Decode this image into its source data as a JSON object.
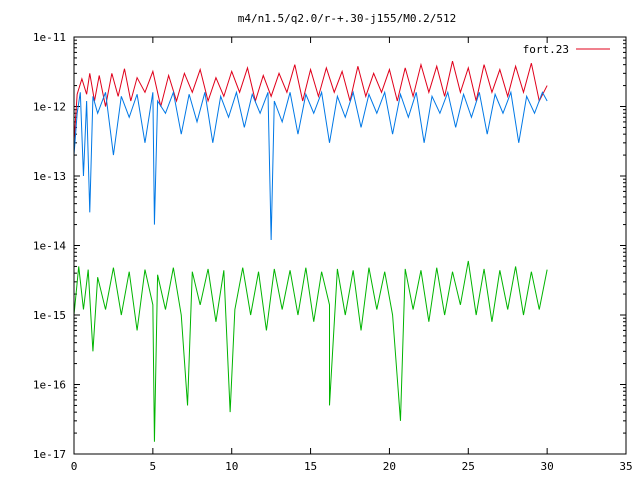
{
  "chart_data": {
    "type": "line",
    "title": "m4/n1.5/q2.0/r-+.30-j155/M0.2/512",
    "xlim": [
      0,
      35
    ],
    "ylim": [
      1e-17,
      1e-11
    ],
    "yscale": "log",
    "grid": false,
    "legend_position": "top-right",
    "x_ticks": [
      "0",
      "5",
      "10",
      "15",
      "20",
      "25",
      "30",
      "35"
    ],
    "y_ticks": [
      "1e-17",
      "1e-16",
      "1e-15",
      "1e-14",
      "1e-13",
      "1e-12",
      "1e-11"
    ],
    "series": [
      {
        "name": "fort.23",
        "color": "#e0001b",
        "points": [
          [
            0,
            3e-13
          ],
          [
            0.2,
            1.5e-12
          ],
          [
            0.5,
            2.5e-12
          ],
          [
            0.8,
            1.5e-12
          ],
          [
            1.0,
            3e-12
          ],
          [
            1.3,
            1.2e-12
          ],
          [
            1.6,
            2.8e-12
          ],
          [
            2.0,
            1e-12
          ],
          [
            2.4,
            3e-12
          ],
          [
            2.8,
            1.4e-12
          ],
          [
            3.2,
            3.5e-12
          ],
          [
            3.6,
            1.2e-12
          ],
          [
            4.0,
            2.6e-12
          ],
          [
            4.5,
            1.6e-12
          ],
          [
            5.0,
            3.2e-12
          ],
          [
            5.5,
            1e-12
          ],
          [
            6.0,
            2.8e-12
          ],
          [
            6.5,
            1.2e-12
          ],
          [
            7.0,
            3e-12
          ],
          [
            7.5,
            1.6e-12
          ],
          [
            8.0,
            3.4e-12
          ],
          [
            8.5,
            1.2e-12
          ],
          [
            9.0,
            2.6e-12
          ],
          [
            9.5,
            1.4e-12
          ],
          [
            10.0,
            3.2e-12
          ],
          [
            10.5,
            1.6e-12
          ],
          [
            11.0,
            3.6e-12
          ],
          [
            11.5,
            1.2e-12
          ],
          [
            12.0,
            2.8e-12
          ],
          [
            12.5,
            1.4e-12
          ],
          [
            13.0,
            3e-12
          ],
          [
            13.5,
            1.6e-12
          ],
          [
            14.0,
            4e-12
          ],
          [
            14.5,
            1.2e-12
          ],
          [
            15.0,
            3.4e-12
          ],
          [
            15.5,
            1.4e-12
          ],
          [
            16.0,
            3.6e-12
          ],
          [
            16.5,
            1.6e-12
          ],
          [
            17.0,
            3.2e-12
          ],
          [
            17.5,
            1.2e-12
          ],
          [
            18.0,
            3.8e-12
          ],
          [
            18.5,
            1.4e-12
          ],
          [
            19.0,
            3e-12
          ],
          [
            19.5,
            1.6e-12
          ],
          [
            20.0,
            3.4e-12
          ],
          [
            20.5,
            1.2e-12
          ],
          [
            21.0,
            3.6e-12
          ],
          [
            21.5,
            1.4e-12
          ],
          [
            22.0,
            4e-12
          ],
          [
            22.5,
            1.6e-12
          ],
          [
            23.0,
            3.8e-12
          ],
          [
            23.5,
            1.4e-12
          ],
          [
            24.0,
            4.5e-12
          ],
          [
            24.5,
            1.6e-12
          ],
          [
            25.0,
            3.6e-12
          ],
          [
            25.5,
            1.2e-12
          ],
          [
            26.0,
            4e-12
          ],
          [
            26.5,
            1.6e-12
          ],
          [
            27.0,
            3.4e-12
          ],
          [
            27.5,
            1.4e-12
          ],
          [
            28.0,
            3.8e-12
          ],
          [
            28.5,
            1.6e-12
          ],
          [
            29.0,
            4.2e-12
          ],
          [
            29.5,
            1.2e-12
          ],
          [
            30.0,
            2e-12
          ]
        ]
      },
      {
        "color": "#0078e6",
        "points": [
          [
            0,
            2e-13
          ],
          [
            0.2,
            8e-13
          ],
          [
            0.4,
            1.6e-12
          ],
          [
            0.6,
            1e-13
          ],
          [
            0.8,
            1.2e-12
          ],
          [
            1.0,
            3e-14
          ],
          [
            1.2,
            1.4e-12
          ],
          [
            1.5,
            8e-13
          ],
          [
            2.0,
            1.6e-12
          ],
          [
            2.5,
            2e-13
          ],
          [
            3.0,
            1.4e-12
          ],
          [
            3.5,
            7e-13
          ],
          [
            4.0,
            1.5e-12
          ],
          [
            4.5,
            3e-13
          ],
          [
            5.0,
            1.6e-12
          ],
          [
            5.1,
            2e-14
          ],
          [
            5.3,
            1.2e-12
          ],
          [
            5.8,
            8e-13
          ],
          [
            6.3,
            1.6e-12
          ],
          [
            6.8,
            4e-13
          ],
          [
            7.3,
            1.5e-12
          ],
          [
            7.8,
            6e-13
          ],
          [
            8.3,
            1.6e-12
          ],
          [
            8.8,
            3e-13
          ],
          [
            9.3,
            1.4e-12
          ],
          [
            9.8,
            7e-13
          ],
          [
            10.3,
            1.6e-12
          ],
          [
            10.8,
            5e-13
          ],
          [
            11.3,
            1.5e-12
          ],
          [
            11.8,
            8e-13
          ],
          [
            12.3,
            1.6e-12
          ],
          [
            12.5,
            1.2e-14
          ],
          [
            12.7,
            1.2e-12
          ],
          [
            13.2,
            6e-13
          ],
          [
            13.7,
            1.6e-12
          ],
          [
            14.2,
            4e-13
          ],
          [
            14.7,
            1.5e-12
          ],
          [
            15.2,
            8e-13
          ],
          [
            15.7,
            1.6e-12
          ],
          [
            16.2,
            3e-13
          ],
          [
            16.7,
            1.4e-12
          ],
          [
            17.2,
            7e-13
          ],
          [
            17.7,
            1.6e-12
          ],
          [
            18.2,
            5e-13
          ],
          [
            18.7,
            1.5e-12
          ],
          [
            19.2,
            8e-13
          ],
          [
            19.7,
            1.6e-12
          ],
          [
            20.2,
            4e-13
          ],
          [
            20.7,
            1.5e-12
          ],
          [
            21.2,
            7e-13
          ],
          [
            21.7,
            1.6e-12
          ],
          [
            22.2,
            3e-13
          ],
          [
            22.7,
            1.4e-12
          ],
          [
            23.2,
            8e-13
          ],
          [
            23.7,
            1.6e-12
          ],
          [
            24.2,
            5e-13
          ],
          [
            24.7,
            1.5e-12
          ],
          [
            25.2,
            7e-13
          ],
          [
            25.7,
            1.6e-12
          ],
          [
            26.2,
            4e-13
          ],
          [
            26.7,
            1.5e-12
          ],
          [
            27.2,
            8e-13
          ],
          [
            27.7,
            1.6e-12
          ],
          [
            28.2,
            3e-13
          ],
          [
            28.7,
            1.4e-12
          ],
          [
            29.2,
            8e-13
          ],
          [
            29.7,
            1.6e-12
          ],
          [
            30.0,
            1.2e-12
          ]
        ]
      },
      {
        "color": "#00b400",
        "points": [
          [
            0,
            1e-15
          ],
          [
            0.3,
            5e-15
          ],
          [
            0.6,
            1.2e-15
          ],
          [
            0.9,
            4.5e-15
          ],
          [
            1.2,
            3e-16
          ],
          [
            1.5,
            3.5e-15
          ],
          [
            2.0,
            1.2e-15
          ],
          [
            2.5,
            4.8e-15
          ],
          [
            3.0,
            1e-15
          ],
          [
            3.5,
            4.2e-15
          ],
          [
            4.0,
            6e-16
          ],
          [
            4.5,
            4.5e-15
          ],
          [
            5.0,
            1.4e-15
          ],
          [
            5.1,
            1.5e-17
          ],
          [
            5.3,
            3.8e-15
          ],
          [
            5.8,
            1.2e-15
          ],
          [
            6.3,
            4.8e-15
          ],
          [
            6.8,
            1e-15
          ],
          [
            7.2,
            5e-17
          ],
          [
            7.5,
            4.2e-15
          ],
          [
            8.0,
            1.4e-15
          ],
          [
            8.5,
            4.6e-15
          ],
          [
            9.0,
            8e-16
          ],
          [
            9.5,
            4.4e-15
          ],
          [
            9.9,
            4e-17
          ],
          [
            10.2,
            1.2e-15
          ],
          [
            10.7,
            4.8e-15
          ],
          [
            11.2,
            1e-15
          ],
          [
            11.7,
            4.2e-15
          ],
          [
            12.2,
            6e-16
          ],
          [
            12.7,
            4.6e-15
          ],
          [
            13.2,
            1.2e-15
          ],
          [
            13.7,
            4.4e-15
          ],
          [
            14.2,
            1e-15
          ],
          [
            14.7,
            4.8e-15
          ],
          [
            15.2,
            8e-16
          ],
          [
            15.7,
            4.2e-15
          ],
          [
            16.2,
            1.4e-15
          ],
          [
            16.2,
            5e-17
          ],
          [
            16.7,
            4.6e-15
          ],
          [
            17.2,
            1e-15
          ],
          [
            17.7,
            4.4e-15
          ],
          [
            18.2,
            6e-16
          ],
          [
            18.7,
            4.8e-15
          ],
          [
            19.2,
            1.2e-15
          ],
          [
            19.7,
            4.2e-15
          ],
          [
            20.2,
            1e-15
          ],
          [
            20.7,
            3e-17
          ],
          [
            21.0,
            4.6e-15
          ],
          [
            21.5,
            1.2e-15
          ],
          [
            22.0,
            4.4e-15
          ],
          [
            22.5,
            8e-16
          ],
          [
            23.0,
            4.8e-15
          ],
          [
            23.5,
            1e-15
          ],
          [
            24.0,
            4.2e-15
          ],
          [
            24.5,
            1.4e-15
          ],
          [
            25.0,
            6e-15
          ],
          [
            25.5,
            1e-15
          ],
          [
            26.0,
            4.6e-15
          ],
          [
            26.5,
            8e-16
          ],
          [
            27.0,
            4.4e-15
          ],
          [
            27.5,
            1.2e-15
          ],
          [
            28.0,
            5e-15
          ],
          [
            28.5,
            1e-15
          ],
          [
            29.0,
            4.2e-15
          ],
          [
            29.5,
            1.2e-15
          ],
          [
            30.0,
            4.5e-15
          ]
        ]
      }
    ]
  }
}
